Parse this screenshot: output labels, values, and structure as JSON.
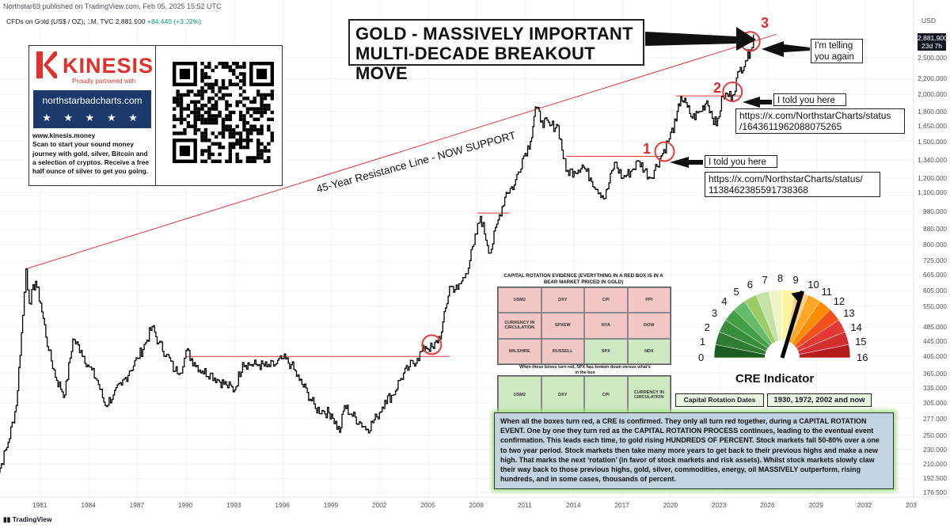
{
  "header": {
    "published": "Northstar69 published on TradingView.com, Feb 05, 2025 15:52 UTC",
    "symbol": "CFDs on Gold (US$ / OZ), 1M, TVC",
    "price": "2,881.900",
    "change": "+84.440 (+3.02%)",
    "currency": "USD",
    "last_price_label": "2,881.900",
    "countdown": "23d 7h",
    "footer_logo": "TradingView"
  },
  "ad": {
    "brand": "KINESIS",
    "partnered": "Proudly partnered with",
    "partner_url": "northstarbadcharts.com",
    "stars": "★ ★ ★ ★ ★",
    "website": "www.kinesis.money",
    "text": "Scan to start your sound money journey with gold, silver, Bitcoin and a selection of cryptos. Receive a free half ounce of silver to get you going.",
    "brand_color": "#e0322a"
  },
  "annotations": {
    "title_line1": "GOLD - MASSIVELY IMPORTANT",
    "title_line2": "MULTI-DECADE BREAKOUT MOVE",
    "resistance_label": "45-Year Resistance Line - NOW SUPPORT",
    "num1": "1",
    "num2": "2",
    "num3": "3",
    "telling_again": "I'm telling you again",
    "told_here_1": "I told you here",
    "link_1": "https://x.com/NorthstarCharts/status/ 1138462385591738368",
    "told_here_2": "I told you here",
    "link_2": "https://x.com/NorthstarCharts/status /1643611962088075265"
  },
  "capital_rotation": {
    "title": "CAPITAL ROTATION EVIDENCE (EVERYTHING IN A RED BOX IS IN A BEAR MARKET PRICED IN GOLD)",
    "boxes": [
      {
        "label": "USM2",
        "state": "red"
      },
      {
        "label": "DXY",
        "state": "red"
      },
      {
        "label": "CPI",
        "state": "red"
      },
      {
        "label": "PPI",
        "state": "red"
      },
      {
        "label": "CURRENCY IN CIRCULATION",
        "state": "red"
      },
      {
        "label": "SPXEW",
        "state": "red"
      },
      {
        "label": "NYA",
        "state": "red"
      },
      {
        "label": "DOW",
        "state": "red"
      },
      {
        "label": "WILSHIRE",
        "state": "red"
      },
      {
        "label": "RUSSELL",
        "state": "red"
      },
      {
        "label": "SPX",
        "state": "green"
      },
      {
        "label": "NDX",
        "state": "green"
      }
    ],
    "subtitle": "When these boxes turn red, SPX has broken down versus what's in the box",
    "row2": [
      "USM2",
      "DXY",
      "CPI",
      "CURRENCY IN CIRCULATION"
    ],
    "dates_label": "Capital Rotation Dates",
    "dates_value": "1930, 1972, 2002 and now"
  },
  "cre": {
    "label": "CRE Indicator",
    "scale": [
      "0",
      "1",
      "2",
      "3",
      "4",
      "5",
      "6",
      "7",
      "8",
      "9",
      "10",
      "11",
      "12",
      "13",
      "14",
      "15",
      "16"
    ],
    "reading": 9.5
  },
  "explanation": "When all the boxes turn red, a CRE is confirmed. They only all turn red together, during a CAPITAL ROTATION EVENT. One by one they turn red as the CAPITAL ROTATION PROCESS continues, leading to the eventual event confirmation. This leads each time, to gold rising HUNDREDS OF PERCENT. Stock markets fall 50-80% over a one to two year period. Stock markets then take many more years to get back to their previous highs and make a new high. That marks the next ‘rotation’ (in favor of stock markets and risk assets). Whilst stock markets slowly claw their way back to those previous highs, gold, silver, commodities, energy, oil MASSIVELY outperform, rising hundreds, and in some cases, thousands of percent.",
  "chart_data": {
    "type": "line",
    "scale": "log",
    "ylim": [
      176,
      2900
    ],
    "xlim": [
      1978.5,
      2035
    ],
    "y_ticks": [
      "2,881.900",
      "2,500.000",
      "2,200.000",
      "2,000.000",
      "1,800.000",
      "1,650.000",
      "1,500.000",
      "1,340.000",
      "1,200.000",
      "1,100.000",
      "980.000",
      "880.000",
      "800.000",
      "725.000",
      "665.000",
      "605.000",
      "550.000",
      "485.000",
      "445.000",
      "405.000",
      "365.000",
      "335.000",
      "305.000",
      "277.000",
      "250.000",
      "230.000",
      "210.000",
      "192.500",
      "176.500"
    ],
    "x_ticks": [
      "1981",
      "1984",
      "1987",
      "1990",
      "1993",
      "1996",
      "1999",
      "2002",
      "2005",
      "2008",
      "2011",
      "2014",
      "2017",
      "2020",
      "2023",
      "2026",
      "2029",
      "2032",
      "203"
    ],
    "series": [
      {
        "points": [
          [
            1978.0,
            180
          ],
          [
            1978.5,
            205
          ],
          [
            1979.0,
            240
          ],
          [
            1979.5,
            300
          ],
          [
            1979.9,
            520
          ],
          [
            1980.1,
            690
          ],
          [
            1980.3,
            560
          ],
          [
            1980.7,
            640
          ],
          [
            1981.0,
            560
          ],
          [
            1981.5,
            420
          ],
          [
            1982.0,
            350
          ],
          [
            1982.5,
            320
          ],
          [
            1983.0,
            450
          ],
          [
            1983.5,
            420
          ],
          [
            1984.0,
            380
          ],
          [
            1984.5,
            350
          ],
          [
            1985.0,
            300
          ],
          [
            1985.5,
            320
          ],
          [
            1986.0,
            340
          ],
          [
            1986.5,
            370
          ],
          [
            1987.0,
            400
          ],
          [
            1987.5,
            440
          ],
          [
            1987.9,
            485
          ],
          [
            1988.3,
            440
          ],
          [
            1988.8,
            410
          ],
          [
            1989.3,
            370
          ],
          [
            1989.8,
            380
          ],
          [
            1990.0,
            420
          ],
          [
            1990.5,
            390
          ],
          [
            1991.0,
            370
          ],
          [
            1991.5,
            365
          ],
          [
            1992.0,
            350
          ],
          [
            1992.5,
            340
          ],
          [
            1993.0,
            330
          ],
          [
            1993.5,
            390
          ],
          [
            1994.0,
            385
          ],
          [
            1994.5,
            385
          ],
          [
            1995.0,
            380
          ],
          [
            1995.5,
            385
          ],
          [
            1996.0,
            400
          ],
          [
            1996.5,
            385
          ],
          [
            1997.0,
            350
          ],
          [
            1997.5,
            325
          ],
          [
            1998.0,
            295
          ],
          [
            1998.5,
            290
          ],
          [
            1999.0,
            285
          ],
          [
            1999.5,
            255
          ],
          [
            1999.8,
            300
          ],
          [
            2000.2,
            285
          ],
          [
            2000.8,
            270
          ],
          [
            2001.2,
            260
          ],
          [
            2001.8,
            280
          ],
          [
            2002.3,
            310
          ],
          [
            2002.8,
            320
          ],
          [
            2003.2,
            350
          ],
          [
            2003.8,
            380
          ],
          [
            2004.3,
            400
          ],
          [
            2004.8,
            430
          ],
          [
            2005.3,
            425
          ],
          [
            2005.8,
            470
          ],
          [
            2006.3,
            620
          ],
          [
            2006.8,
            610
          ],
          [
            2007.3,
            670
          ],
          [
            2007.8,
            800
          ],
          [
            2008.2,
            950
          ],
          [
            2008.8,
            760
          ],
          [
            2009.3,
            930
          ],
          [
            2009.8,
            1100
          ],
          [
            2010.3,
            1150
          ],
          [
            2010.8,
            1350
          ],
          [
            2011.3,
            1500
          ],
          [
            2011.6,
            1850
          ],
          [
            2012.0,
            1700
          ],
          [
            2012.5,
            1650
          ],
          [
            2013.0,
            1650
          ],
          [
            2013.5,
            1250
          ],
          [
            2014.0,
            1250
          ],
          [
            2014.5,
            1300
          ],
          [
            2015.0,
            1200
          ],
          [
            2015.9,
            1060
          ],
          [
            2016.5,
            1320
          ],
          [
            2017.0,
            1200
          ],
          [
            2017.5,
            1250
          ],
          [
            2018.0,
            1330
          ],
          [
            2018.7,
            1200
          ],
          [
            2019.3,
            1350
          ],
          [
            2019.8,
            1500
          ],
          [
            2020.3,
            1700
          ],
          [
            2020.6,
            1970
          ],
          [
            2021.0,
            1850
          ],
          [
            2021.3,
            1730
          ],
          [
            2021.8,
            1800
          ],
          [
            2022.2,
            1920
          ],
          [
            2022.8,
            1650
          ],
          [
            2023.2,
            1980
          ],
          [
            2023.8,
            1990
          ],
          [
            2024.2,
            2300
          ],
          [
            2024.6,
            2450
          ],
          [
            2024.9,
            2620
          ],
          [
            2025.1,
            2881.9
          ]
        ]
      }
    ],
    "lines": [
      {
        "name": "45-Year Resistance Line",
        "from": [
          1980.1,
          690
        ],
        "to": [
          2026.5,
          2880
        ]
      }
    ],
    "horizontals": [
      {
        "y": 405,
        "from": 1990,
        "to": 2006.3
      },
      {
        "y": 970,
        "from": 2008,
        "to": 2010
      },
      {
        "y": 1370,
        "from": 2013.5,
        "to": 2019.5
      },
      {
        "y": 1980,
        "from": 2020.3,
        "to": 2024.3
      }
    ],
    "circles": [
      {
        "x": 2005.2,
        "y": 435
      },
      {
        "x": 2019.6,
        "y": 1410
      },
      {
        "x": 2023.8,
        "y": 2030
      },
      {
        "x": 2024.9,
        "y": 2760
      }
    ]
  }
}
